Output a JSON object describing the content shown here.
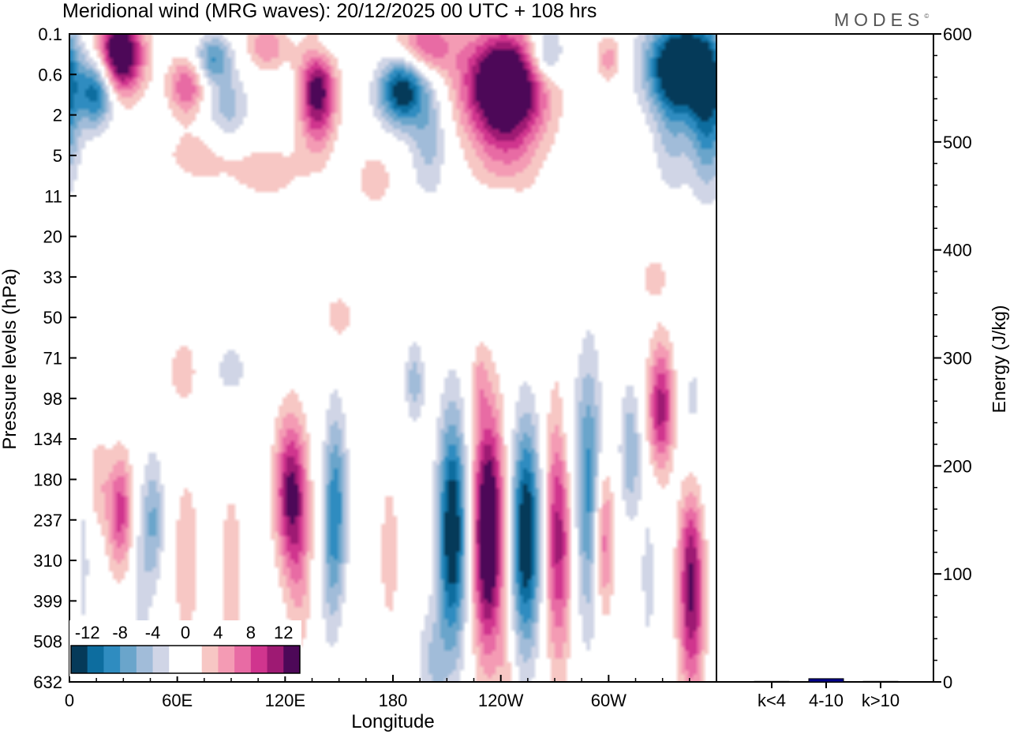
{
  "title": "Meridional wind (MRG waves):  20/12/2025  00 UTC  + 108 hrs",
  "logo": "MODES",
  "logo_mark": "©",
  "chart_data": [
    {
      "type": "heatmap",
      "title": "Meridional wind (MRG waves):  20/12/2025  00 UTC  + 108 hrs",
      "xlabel": "Longitude",
      "ylabel": "Pressure levels (hPa)",
      "x_ticks": [
        "0",
        "60E",
        "120E",
        "180",
        "120W",
        "60W"
      ],
      "x_tick_degrees": [
        0,
        60,
        120,
        180,
        240,
        300
      ],
      "xlim": [
        0,
        360
      ],
      "y_ticks": [
        "0.1",
        "0.6",
        "2",
        "5",
        "11",
        "20",
        "33",
        "50",
        "71",
        "98",
        "134",
        "180",
        "237",
        "310",
        "399",
        "508",
        "632"
      ],
      "colorbar": {
        "tick_labels": [
          "-12",
          "-8",
          "-4",
          "0",
          "4",
          "8",
          "12"
        ],
        "levels": [
          -14,
          -12,
          -10,
          -8,
          -6,
          -4,
          -2,
          0,
          2,
          4,
          6,
          8,
          10,
          12,
          14
        ],
        "colors": [
          "#053a59",
          "#0d6d9f",
          "#2f8cc0",
          "#6aa5cb",
          "#a1bcd9",
          "#d0d5e6",
          "#ffffff",
          "#ffffff",
          "#f7c7c4",
          "#f49bb4",
          "#e86ba4",
          "#d0358e",
          "#9e1a73",
          "#4d0858"
        ]
      },
      "blobs": [
        {
          "lon": 28,
          "lev": 11.8,
          "amp": 9,
          "slon": 5,
          "slev": 1.0
        },
        {
          "lon": 16,
          "lev": 11.0,
          "amp": 3.5,
          "slon": 4,
          "slev": 0.8
        },
        {
          "lon": 47,
          "lev": 12.0,
          "amp": -6,
          "slon": 4,
          "slev": 1.1
        },
        {
          "lon": 40,
          "lev": 13.4,
          "amp": -3,
          "slon": 4,
          "slev": 1.6
        },
        {
          "lon": 8,
          "lev": 13.0,
          "amp": -2.5,
          "slon": 3,
          "slev": 2.0
        },
        {
          "lon": 65,
          "lev": 13.0,
          "amp": 2.8,
          "slon": 7,
          "slev": 2.2
        },
        {
          "lon": 90,
          "lev": 13.5,
          "amp": 2.8,
          "slon": 6,
          "slev": 2.4
        },
        {
          "lon": 123,
          "lev": 11.3,
          "amp": 12,
          "slon": 6,
          "slev": 1.3
        },
        {
          "lon": 128,
          "lev": 13.2,
          "amp": 4,
          "slon": 5,
          "slev": 1.6
        },
        {
          "lon": 148,
          "lev": 11.6,
          "amp": -9,
          "slon": 4.5,
          "slev": 1.6
        },
        {
          "lon": 145,
          "lev": 13.6,
          "amp": -2.5,
          "slon": 4,
          "slev": 1.4
        },
        {
          "lon": 178,
          "lev": 12.8,
          "amp": 2.5,
          "slon": 6,
          "slev": 2.2
        },
        {
          "lon": 192,
          "lev": 8.6,
          "amp": -5,
          "slon": 4,
          "slev": 0.7
        },
        {
          "lon": 213,
          "lev": 12.3,
          "amp": -15,
          "slon": 5.5,
          "slev": 2.0
        },
        {
          "lon": 202,
          "lev": 15.5,
          "amp": -4,
          "slon": 6,
          "slev": 1.0
        },
        {
          "lon": 233,
          "lev": 12.3,
          "amp": 17,
          "slon": 6,
          "slev": 2.1
        },
        {
          "lon": 228,
          "lev": 8.6,
          "amp": 3,
          "slon": 3,
          "slev": 0.6
        },
        {
          "lon": 254,
          "lev": 12.4,
          "amp": -15,
          "slon": 5.5,
          "slev": 1.9
        },
        {
          "lon": 243,
          "lev": 16.0,
          "amp": 3,
          "slon": 3,
          "slev": 0.9
        },
        {
          "lon": 272,
          "lev": 12.3,
          "amp": 11,
          "slon": 5,
          "slev": 2.2
        },
        {
          "lon": 277,
          "lev": 10.0,
          "amp": -2.5,
          "slon": 5,
          "slev": 1.2
        },
        {
          "lon": 289,
          "lev": 11.3,
          "amp": -9,
          "slon": 5,
          "slev": 2.3
        },
        {
          "lon": 297,
          "lev": 12.5,
          "amp": 8,
          "slon": 4,
          "slev": 1.3
        },
        {
          "lon": 312,
          "lev": 10.3,
          "amp": -6,
          "slon": 4,
          "slev": 1.1
        },
        {
          "lon": 329,
          "lev": 9.2,
          "amp": 11,
          "slon": 5,
          "slev": 1.1
        },
        {
          "lon": 347,
          "lev": 9.0,
          "amp": -2.5,
          "slon": 5,
          "slev": 0.8
        },
        {
          "lon": 346,
          "lev": 14.0,
          "amp": 12,
          "slon": 5,
          "slev": 1.6
        },
        {
          "lon": 345,
          "lev": 12.4,
          "amp": 2.8,
          "slon": 4,
          "slev": 0.8
        },
        {
          "lon": 322,
          "lev": 13.4,
          "amp": -2.5,
          "slon": 4,
          "slev": 1.8
        },
        {
          "lon": 90,
          "lev": 8.3,
          "amp": -3.5,
          "slon": 6,
          "slev": 0.5
        },
        {
          "lon": 63,
          "lev": 8.3,
          "amp": 3,
          "slon": 6,
          "slev": 0.6
        },
        {
          "lon": 28,
          "lev": 0.5,
          "amp": 17,
          "slon": 9,
          "slev": 0.7
        },
        {
          "lon": 15,
          "lev": 1.4,
          "amp": -12,
          "slon": 7,
          "slev": 0.6
        },
        {
          "lon": 65,
          "lev": 1.3,
          "amp": 8,
          "slon": 7,
          "slev": 0.5
        },
        {
          "lon": 80,
          "lev": 0.6,
          "amp": -8,
          "slon": 7,
          "slev": 0.4
        },
        {
          "lon": 88,
          "lev": 1.8,
          "amp": -5,
          "slon": 8,
          "slev": 0.6
        },
        {
          "lon": 110,
          "lev": 0.3,
          "amp": 6,
          "slon": 8,
          "slev": 0.4
        },
        {
          "lon": 138,
          "lev": 1.4,
          "amp": 14,
          "slon": 7,
          "slev": 0.9
        },
        {
          "lon": 140,
          "lev": 0.4,
          "amp": -4,
          "slon": 6,
          "slev": 0.4
        },
        {
          "lon": 185,
          "lev": 1.4,
          "amp": -14,
          "slon": 9,
          "slev": 0.6
        },
        {
          "lon": 200,
          "lev": 2.6,
          "amp": -5,
          "slon": 7,
          "slev": 1.0
        },
        {
          "lon": 198,
          "lev": 0.3,
          "amp": 8,
          "slon": 12,
          "slev": 0.5
        },
        {
          "lon": 242,
          "lev": 1.2,
          "amp": 18,
          "slon": 16,
          "slev": 0.9
        },
        {
          "lon": 243,
          "lev": 2.7,
          "amp": 5,
          "slon": 14,
          "slev": 1.0
        },
        {
          "lon": 265,
          "lev": 0.5,
          "amp": -8,
          "slon": 7,
          "slev": 0.5
        },
        {
          "lon": 300,
          "lev": 0.6,
          "amp": 5,
          "slon": 5,
          "slev": 0.4
        },
        {
          "lon": 340,
          "lev": 0.8,
          "amp": -18,
          "slon": 13,
          "slev": 0.8
        },
        {
          "lon": 355,
          "lev": 1.9,
          "amp": -10,
          "slon": 7,
          "slev": 1.3
        },
        {
          "lon": 335,
          "lev": 2.6,
          "amp": -4,
          "slon": 7,
          "slev": 1.0
        },
        {
          "lon": 70,
          "lev": 3.0,
          "amp": 2.8,
          "slon": 14,
          "slev": 0.5
        },
        {
          "lon": 110,
          "lev": 3.4,
          "amp": 2.8,
          "slon": 18,
          "slev": 0.6
        },
        {
          "lon": 170,
          "lev": 3.6,
          "amp": 3,
          "slon": 8,
          "slev": 0.6
        },
        {
          "lon": 150,
          "lev": 7.0,
          "amp": 3,
          "slon": 7,
          "slev": 0.5
        },
        {
          "lon": 325,
          "lev": 6.0,
          "amp": 3,
          "slon": 6,
          "slev": 0.4
        },
        {
          "lon": 240,
          "lev": 4.4,
          "amp": -3,
          "slon": 7,
          "slev": 0.4
        }
      ]
    },
    {
      "type": "bar",
      "ylabel": "Energy (J/kg)",
      "ylim": [
        0,
        600
      ],
      "y_ticks": [
        "0",
        "100",
        "200",
        "300",
        "400",
        "500",
        "600"
      ],
      "categories": [
        "k<4",
        "4-10",
        "k>10"
      ],
      "values": [
        0.5,
        3,
        0.5
      ],
      "bar_color": "#00008b"
    }
  ]
}
